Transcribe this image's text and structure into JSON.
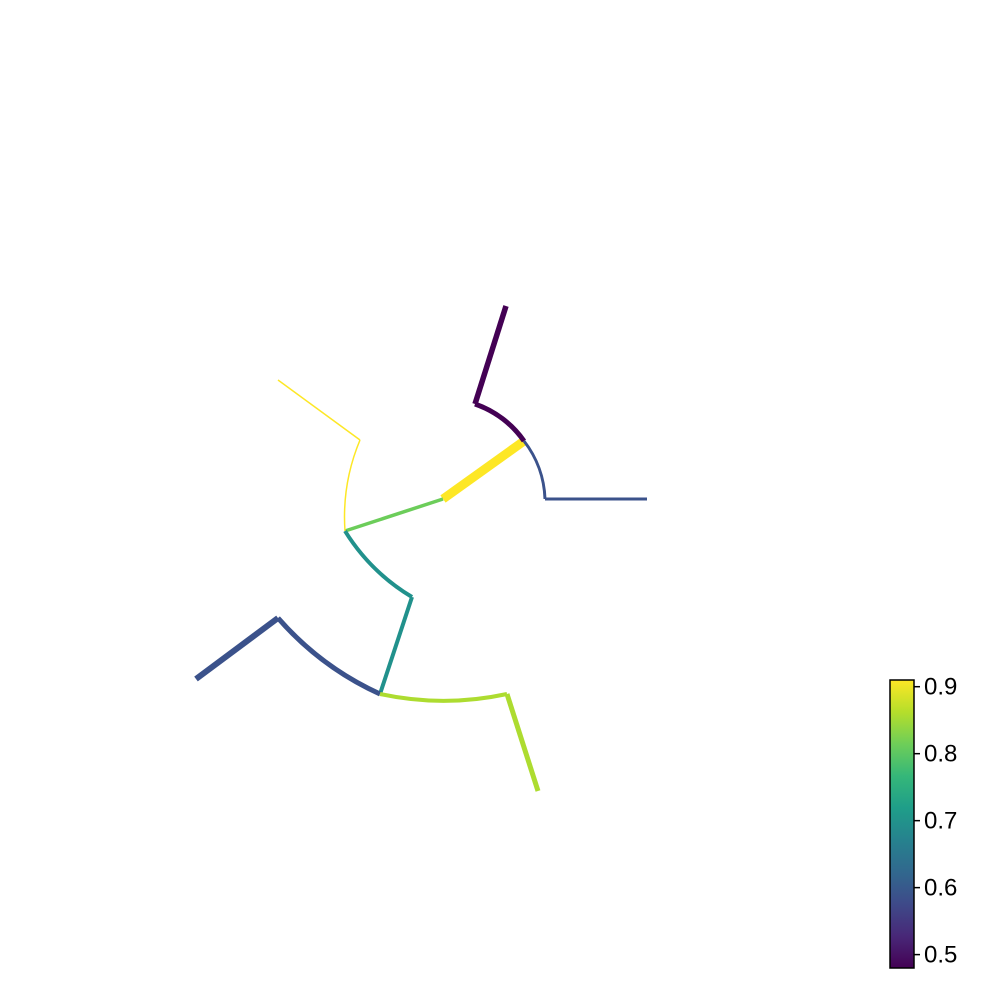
{
  "chart_data": {
    "type": "radial-dendrogram",
    "title": "",
    "branches": [
      {
        "id": "center-link",
        "value": 0.91,
        "color": "#fde725"
      },
      {
        "id": "top-arc",
        "value": 0.48,
        "color": "#440154"
      },
      {
        "id": "top-leaf",
        "value": 0.48,
        "color": "#440154"
      },
      {
        "id": "right-arc",
        "value": 0.6,
        "color": "#3b528b"
      },
      {
        "id": "right-leaf",
        "value": 0.6,
        "color": "#3b528b"
      },
      {
        "id": "mid-link",
        "value": 0.8,
        "color": "#6ccd5a"
      },
      {
        "id": "upper-left-arc",
        "value": 0.91,
        "color": "#fde725"
      },
      {
        "id": "upper-left-leaf",
        "value": 0.91,
        "color": "#fde725"
      },
      {
        "id": "lower-arc",
        "value": 0.67,
        "color": "#21918c"
      },
      {
        "id": "lower-link",
        "value": 0.67,
        "color": "#21918c"
      },
      {
        "id": "left-arc",
        "value": 0.6,
        "color": "#3b528b"
      },
      {
        "id": "left-leaf",
        "value": 0.6,
        "color": "#3b528b"
      },
      {
        "id": "bottom-arc",
        "value": 0.86,
        "color": "#addc30"
      },
      {
        "id": "bottom-leaf",
        "value": 0.86,
        "color": "#addc30"
      }
    ],
    "colorbar": {
      "colormap": "viridis",
      "range": [
        0.48,
        0.91
      ],
      "ticks": [
        0.5,
        0.6,
        0.7,
        0.8,
        0.9
      ],
      "tick_labels": [
        "0.5",
        "0.6",
        "0.7",
        "0.8",
        "0.9"
      ],
      "stops": [
        "#440154",
        "#482878",
        "#3e4a89",
        "#31688e",
        "#26828e",
        "#1f9e89",
        "#35b779",
        "#6ece58",
        "#b5de2b",
        "#fde725"
      ]
    }
  }
}
